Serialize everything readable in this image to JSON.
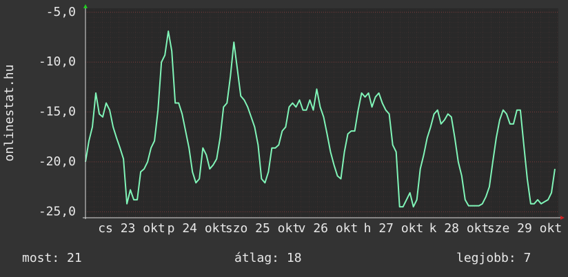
{
  "chart_data": {
    "type": "line",
    "y_axis_label": "onlinestat.hu",
    "x_labels": [
      "cs 23 okt",
      "p 24 okt",
      "szo 25 okt",
      "v 26 okt",
      "h 27 okt",
      "k 28 okt",
      "sze 29 okt"
    ],
    "series": [
      {
        "color": "#80f5b8",
        "values": [
          -20,
          -17.9,
          -16.5,
          -13.1,
          -15.2,
          -15.5,
          -14.1,
          -14.8,
          -16.5,
          -17.6,
          -18.6,
          -19.7,
          -24.2,
          -22.8,
          -23.8,
          -23.8,
          -21,
          -20.7,
          -20,
          -18.6,
          -17.9,
          -14.8,
          -10,
          -9.3,
          -6.9,
          -8.9,
          -14.1,
          -14.1,
          -15.2,
          -16.9,
          -18.6,
          -21,
          -22.1,
          -21.7,
          -18.6,
          -19.3,
          -20.7,
          -20.3,
          -19.7,
          -17.6,
          -14.5,
          -14.1,
          -11.4,
          -8,
          -10.7,
          -13.4,
          -13.8,
          -14.5,
          -15.5,
          -16.5,
          -18.3,
          -21.7,
          -22.1,
          -21,
          -18.6,
          -18.6,
          -18.3,
          -16.9,
          -16.5,
          -14.5,
          -14.1,
          -14.5,
          -13.8,
          -14.8,
          -14.8,
          -13.8,
          -14.8,
          -12.7,
          -14.5,
          -15.5,
          -17.2,
          -19,
          -20.3,
          -21.4,
          -21.7,
          -19,
          -17.2,
          -16.9,
          -16.9,
          -14.8,
          -13.1,
          -13.5,
          -13.1,
          -14.5,
          -13.5,
          -13.1,
          -14.1,
          -14.8,
          -15.2,
          -18.3,
          -19,
          -24.5,
          -24.5,
          -23.8,
          -23.1,
          -24.5,
          -23.8,
          -20.7,
          -19.3,
          -17.6,
          -16.5,
          -15.2,
          -14.8,
          -16.2,
          -15.8,
          -15.2,
          -15.5,
          -17.6,
          -20,
          -21.4,
          -23.8,
          -24.4,
          -24.4,
          -24.4,
          -24.4,
          -24.2,
          -23.5,
          -22.5,
          -20,
          -17.6,
          -15.8,
          -14.8,
          -15.2,
          -16.2,
          -16.2,
          -14.8,
          -14.8,
          -18.3,
          -21.7,
          -24.2,
          -24.2,
          -23.8,
          -24.2,
          -24,
          -23.8,
          -23.1,
          -20.7
        ]
      }
    ],
    "ylim": [
      -25.6,
      -4.6
    ],
    "yticks": [
      {
        "value": -5,
        "label": "-5,0"
      },
      {
        "value": -10,
        "label": "-10,0"
      },
      {
        "value": -15,
        "label": "-15,0"
      },
      {
        "value": -20,
        "label": "-20,0"
      },
      {
        "value": -25,
        "label": "-25,0"
      }
    ],
    "grid": true
  },
  "footer": {
    "current": "most: 21",
    "average": "átlag: 18",
    "best": "legjobb: 7"
  }
}
